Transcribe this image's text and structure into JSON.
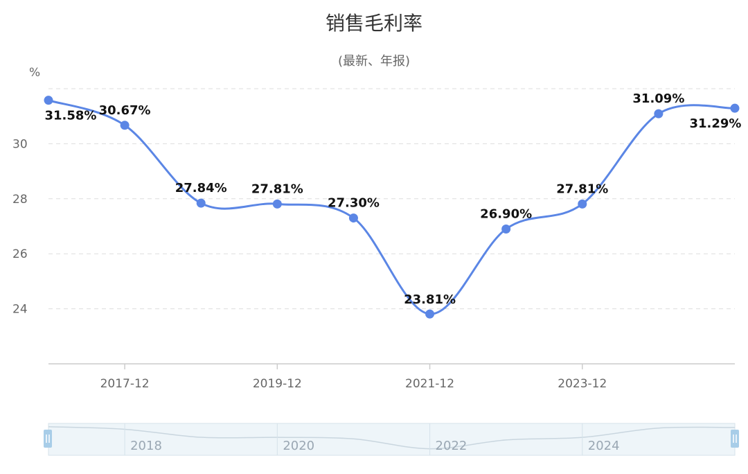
{
  "chart_data": {
    "type": "line",
    "title": "销售毛利率",
    "subtitle": "(最新、年报)",
    "ylabel": "%",
    "ylim": [
      22,
      32
    ],
    "yticks": [
      24,
      26,
      28,
      30
    ],
    "grid": true,
    "x": [
      "2016-12",
      "2017-12",
      "2018-12",
      "2019-12",
      "2020-12",
      "2021-12",
      "2022-12",
      "2023-12",
      "2024-12",
      "2025-09"
    ],
    "x_tick_labels": [
      "2017-12",
      "2019-12",
      "2021-12",
      "2023-12"
    ],
    "series": [
      {
        "values": [
          31.58,
          30.67,
          27.84,
          27.81,
          27.3,
          23.81,
          26.9,
          27.81,
          31.09,
          31.29
        ],
        "labels": [
          "31.58%",
          "30.67%",
          "27.84%",
          "27.81%",
          "27.30%",
          "23.81%",
          "26.90%",
          "27.81%",
          "31.09%",
          "31.29%"
        ],
        "color": "#5b86e5"
      }
    ],
    "navigator": {
      "labels": [
        "2018",
        "2020",
        "2022",
        "2024"
      ]
    }
  },
  "colors": {
    "line": "#5b86e5",
    "grid": "#dddddd",
    "axis": "#cccccc",
    "navigator_fill": "#eef5f9",
    "navigator_handle": "#a8cde8"
  }
}
